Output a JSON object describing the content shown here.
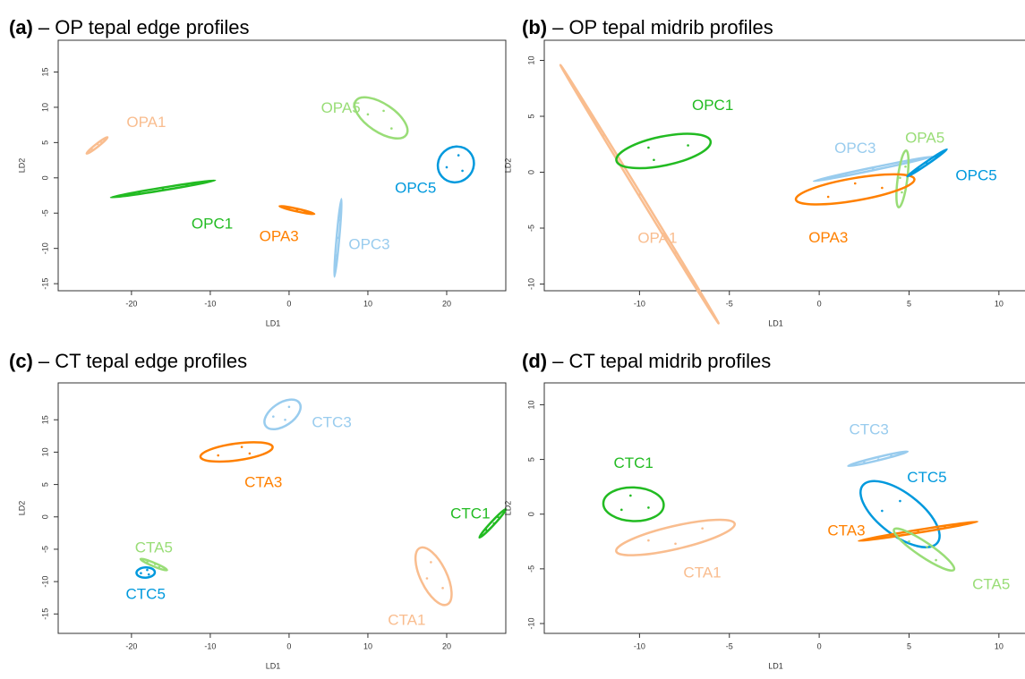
{
  "chart_data": [
    {
      "type": "scatter",
      "panel": "(a)",
      "title": "– OP tepal edge profiles",
      "x_label": "LD1",
      "y_label": "LD2",
      "xlim": [
        -29.3,
        27.5
      ],
      "ylim": [
        -16,
        19.5
      ],
      "xticks": [
        -20,
        -10,
        0,
        10,
        20
      ],
      "yticks": [
        -15,
        -10,
        -5,
        0,
        5,
        10,
        15
      ],
      "series": [
        {
          "name": "OPA1",
          "color": "#f9bd8f",
          "x": [
            -25,
            -24.3,
            -23.8
          ],
          "y": [
            4,
            4.8,
            5
          ]
        },
        {
          "name": "OPC1",
          "color": "#22bb22",
          "x": [
            -19,
            -16,
            -13
          ],
          "y": [
            -2.1,
            -1.6,
            -1.0
          ]
        },
        {
          "name": "OPA3",
          "color": "#ff8000",
          "x": [
            0,
            1,
            2
          ],
          "y": [
            -4.3,
            -4.6,
            -4.8
          ]
        },
        {
          "name": "OPC3",
          "color": "#99ccee",
          "x": [
            6.4,
            6.2,
            6.0
          ],
          "y": [
            -6,
            -8.5,
            -11
          ]
        },
        {
          "name": "OPA5",
          "color": "#99dd77",
          "x": [
            10,
            12,
            13
          ],
          "y": [
            9,
            9.5,
            7
          ]
        },
        {
          "name": "OPC5",
          "color": "#0099dd",
          "x": [
            20,
            21.5,
            22
          ],
          "y": [
            1.5,
            3.2,
            1
          ]
        }
      ]
    },
    {
      "type": "scatter",
      "panel": "(b)",
      "title": "– OP tepal midrib profiles",
      "x_label": "LD1",
      "y_label": "LD2",
      "xlim": [
        -15.3,
        12.2
      ],
      "ylim": [
        -10.6,
        11.8
      ],
      "xticks": [
        -10,
        -5,
        0,
        5,
        10
      ],
      "yticks": [
        -10,
        -5,
        0,
        5,
        10
      ],
      "series": [
        {
          "name": "OPA1",
          "color": "#f9bd8f",
          "x": [
            -12,
            -10,
            -8
          ],
          "y": [
            3.3,
            -2,
            -7.2
          ]
        },
        {
          "name": "OPC1",
          "color": "#22bb22",
          "x": [
            -9.5,
            -9.2,
            -7.3
          ],
          "y": [
            2.2,
            1.1,
            2.4
          ]
        },
        {
          "name": "OPC3",
          "color": "#99ccee",
          "x": [
            1.5,
            3,
            4.5
          ],
          "y": [
            -0.2,
            0.3,
            0.8
          ]
        },
        {
          "name": "OPA5",
          "color": "#99dd77",
          "x": [
            4.5,
            4.8,
            4.6
          ],
          "y": [
            -0.5,
            0.5,
            -1.8
          ]
        },
        {
          "name": "OPA3",
          "color": "#ff8000",
          "x": [
            0.5,
            2,
            3.5
          ],
          "y": [
            -2.2,
            -1,
            -1.4
          ]
        },
        {
          "name": "OPC5",
          "color": "#0099dd",
          "x": [
            5.5,
            6,
            6.5
          ],
          "y": [
            0.3,
            0.8,
            1.4
          ]
        }
      ]
    },
    {
      "type": "scatter",
      "panel": "(c)",
      "title": "– CT tepal edge profiles",
      "x_label": "LD1",
      "y_label": "LD2",
      "xlim": [
        -29.3,
        27.5
      ],
      "ylim": [
        -18,
        20.7
      ],
      "xticks": [
        -20,
        -10,
        0,
        10,
        20
      ],
      "yticks": [
        -15,
        -10,
        -5,
        0,
        5,
        10,
        15
      ],
      "series": [
        {
          "name": "CTC3",
          "color": "#99ccee",
          "x": [
            -2,
            0,
            -0.5
          ],
          "y": [
            15.5,
            17,
            15
          ]
        },
        {
          "name": "CTA3",
          "color": "#ff8000",
          "x": [
            -9,
            -6,
            -5
          ],
          "y": [
            9.5,
            10.8,
            9.8
          ]
        },
        {
          "name": "CTA5",
          "color": "#99dd77",
          "x": [
            -18,
            -17,
            -16.5
          ],
          "y": [
            -7,
            -7.3,
            -7.8
          ]
        },
        {
          "name": "CTC5",
          "color": "#0099dd",
          "x": [
            -18.8,
            -18,
            -17.8
          ],
          "y": [
            -8.7,
            -8.2,
            -8.9
          ]
        },
        {
          "name": "CTC1",
          "color": "#22bb22",
          "x": [
            25,
            26,
            26.5
          ],
          "y": [
            -2,
            -1,
            0
          ]
        },
        {
          "name": "CTA1",
          "color": "#f9bd8f",
          "x": [
            18,
            17.5,
            19.5
          ],
          "y": [
            -7,
            -9.5,
            -11
          ]
        }
      ]
    },
    {
      "type": "scatter",
      "panel": "(d)",
      "title": "– CT tepal midrib profiles",
      "x_label": "LD1",
      "y_label": "LD2",
      "xlim": [
        -15.3,
        12.2
      ],
      "ylim": [
        -10.9,
        12
      ],
      "xticks": [
        -10,
        -5,
        0,
        5,
        10
      ],
      "yticks": [
        -10,
        -5,
        0,
        5,
        10
      ],
      "series": [
        {
          "name": "CTC1",
          "color": "#22bb22",
          "x": [
            -10.5,
            -11,
            -9.5
          ],
          "y": [
            1.7,
            0.4,
            0.6
          ]
        },
        {
          "name": "CTA1",
          "color": "#f9bd8f",
          "x": [
            -9.5,
            -8,
            -6.5
          ],
          "y": [
            -2.4,
            -2.7,
            -1.3
          ]
        },
        {
          "name": "CTC3",
          "color": "#99ccee",
          "x": [
            2.5,
            4,
            3.3
          ],
          "y": [
            4.8,
            5.4,
            5
          ]
        },
        {
          "name": "CTC5",
          "color": "#0099dd",
          "x": [
            3.5,
            4.5,
            5.5
          ],
          "y": [
            0.3,
            1.2,
            -1.5
          ]
        },
        {
          "name": "CTA3",
          "color": "#ff8000",
          "x": [
            4,
            5.5,
            7
          ],
          "y": [
            -2,
            -1.5,
            -1.2
          ]
        },
        {
          "name": "CTA5",
          "color": "#99dd77",
          "x": [
            5,
            6,
            6.5
          ],
          "y": [
            -2.5,
            -3,
            -4.2
          ]
        }
      ]
    }
  ]
}
